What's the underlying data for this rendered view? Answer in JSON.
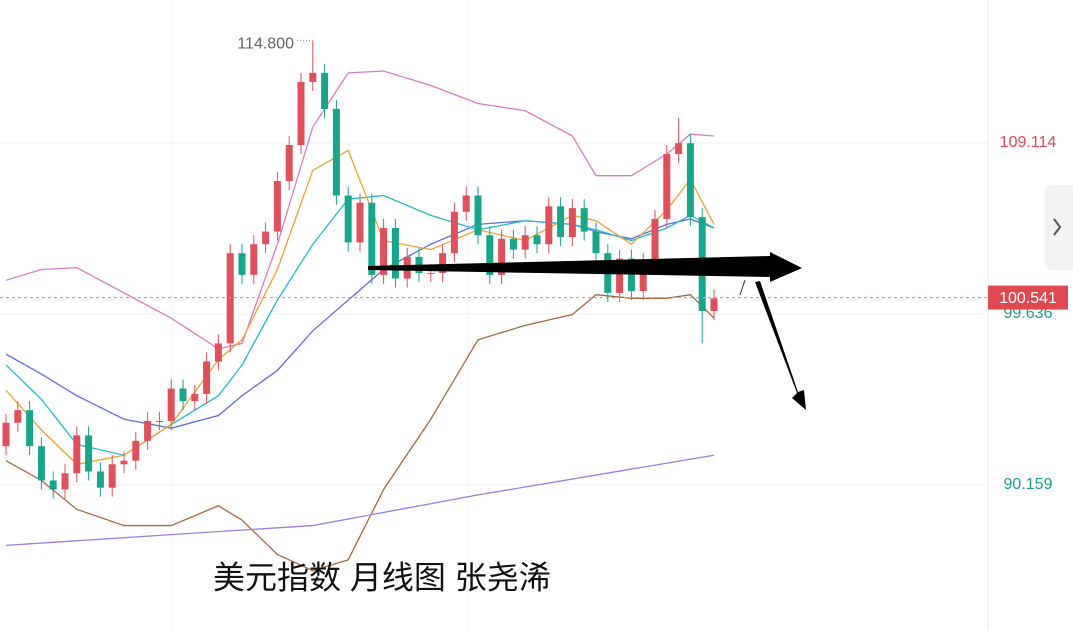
{
  "chart_data": {
    "type": "candlestick",
    "title": "美元指数 月线图 张尧浠",
    "ylim": [
      82.11,
      117.04
    ],
    "yticks": [
      109.114,
      99.636,
      90.159
    ],
    "ytick_colors": [
      "#d9485a",
      "#17a08a",
      "#17a08a"
    ],
    "last_price": 100.541,
    "last_price_color": "#e04850",
    "max_annotation": {
      "value": 114.8,
      "label": "114.800"
    },
    "up_color": "#e0505a",
    "down_color": "#17a58c",
    "grid": true,
    "open": [
      92.3,
      93.6,
      94.3,
      92.3,
      90.4,
      89.9,
      90.8,
      92.9,
      90.9,
      90.0,
      91.3,
      91.5,
      92.6,
      93.7,
      93.7,
      95.5,
      94.8,
      95.2,
      97.0,
      98.0,
      103.0,
      101.8,
      103.5,
      104.2,
      107.0,
      109.0,
      112.5,
      113.0,
      111.0,
      106.2,
      103.6,
      105.8,
      101.8,
      104.4,
      101.6,
      102.8,
      101.9,
      101.9,
      103.0,
      105.3,
      106.2,
      104.0,
      101.8,
      103.8,
      103.2,
      104.0,
      103.5,
      105.6,
      103.9,
      105.5,
      104.2,
      103.0,
      100.8,
      102.7,
      100.9,
      102.5,
      104.9,
      108.5,
      109.1,
      105.0,
      99.8
    ],
    "high": [
      94.1,
      94.8,
      94.8,
      92.8,
      90.9,
      91.3,
      93.4,
      93.4,
      91.4,
      91.8,
      92.0,
      93.1,
      94.2,
      94.2,
      96.0,
      96.0,
      95.7,
      97.5,
      98.5,
      103.5,
      103.5,
      104.0,
      104.7,
      107.5,
      109.5,
      113.0,
      114.8,
      113.5,
      111.5,
      106.7,
      106.3,
      106.3,
      104.9,
      104.9,
      103.3,
      103.3,
      102.4,
      103.5,
      105.8,
      106.7,
      106.7,
      104.5,
      104.3,
      104.3,
      104.5,
      104.5,
      106.1,
      106.1,
      106.0,
      106.0,
      104.7,
      103.5,
      103.2,
      103.2,
      103.0,
      105.4,
      109.0,
      110.5,
      109.6,
      105.5,
      101.0
    ],
    "low": [
      91.8,
      93.1,
      91.8,
      89.9,
      89.4,
      89.4,
      90.3,
      90.4,
      89.5,
      89.5,
      90.8,
      91.0,
      92.1,
      93.2,
      93.2,
      94.3,
      94.3,
      94.7,
      96.5,
      97.5,
      101.3,
      101.3,
      103.0,
      103.7,
      106.5,
      108.5,
      112.0,
      110.5,
      105.7,
      103.1,
      103.1,
      101.3,
      101.3,
      101.1,
      101.1,
      101.4,
      101.4,
      101.4,
      102.5,
      104.8,
      103.5,
      101.3,
      101.3,
      102.7,
      102.7,
      103.0,
      103.0,
      103.4,
      103.4,
      103.7,
      102.5,
      100.3,
      100.3,
      100.4,
      100.4,
      102.0,
      104.4,
      108.0,
      104.5,
      98.0,
      99.3
    ],
    "close": [
      93.6,
      94.3,
      92.3,
      90.4,
      89.9,
      90.8,
      92.9,
      90.9,
      90.0,
      91.3,
      91.5,
      92.6,
      93.7,
      93.7,
      95.5,
      94.8,
      95.2,
      97.0,
      98.0,
      103.0,
      101.8,
      103.5,
      104.2,
      107.0,
      109.0,
      112.5,
      113.0,
      111.0,
      106.2,
      103.6,
      105.8,
      101.8,
      104.4,
      101.6,
      102.8,
      101.9,
      101.9,
      103.0,
      105.3,
      106.2,
      104.0,
      101.8,
      103.8,
      103.2,
      104.0,
      103.5,
      105.6,
      103.9,
      105.5,
      104.2,
      103.0,
      100.8,
      102.7,
      100.9,
      102.5,
      104.9,
      108.5,
      109.1,
      105.0,
      99.8,
      100.5
    ],
    "series": [
      {
        "color": "#d97bc5",
        "x": [
          0,
          3,
          6,
          10,
          14,
          18,
          20,
          23,
          26,
          29,
          32,
          36,
          40,
          44,
          48,
          50,
          53,
          56,
          58,
          60
        ],
        "values": [
          101.5,
          102.1,
          102.2,
          100.8,
          99.4,
          97.7,
          98.0,
          103.5,
          110.0,
          113.0,
          113.1,
          112.3,
          111.3,
          110.9,
          109.5,
          107.3,
          107.3,
          108.5,
          109.6,
          109.5
        ]
      },
      {
        "color": "#a5683e",
        "x": [
          0,
          3,
          6,
          10,
          14,
          18,
          20,
          23,
          26,
          29,
          32,
          36,
          40,
          44,
          48,
          50,
          53,
          56,
          58,
          60
        ],
        "values": [
          91.5,
          90.4,
          88.8,
          87.9,
          87.9,
          89.0,
          88.2,
          86.3,
          85.4,
          86.0,
          89.9,
          93.8,
          98.2,
          99.0,
          99.6,
          100.7,
          100.5,
          100.5,
          100.7,
          99.4
        ]
      },
      {
        "color": "#5b6fd6",
        "x": [
          0,
          3,
          6,
          10,
          14,
          18,
          20,
          23,
          26,
          29,
          32,
          36,
          40,
          44,
          48,
          50,
          53,
          56,
          58,
          60
        ],
        "values": [
          97.4,
          96.3,
          95.1,
          93.8,
          93.3,
          94.0,
          95.1,
          96.5,
          98.7,
          100.4,
          102.1,
          103.5,
          104.6,
          104.8,
          104.6,
          104.2,
          103.8,
          104.6,
          104.9,
          104.4
        ]
      },
      {
        "color": "#20bccc",
        "x": [
          0,
          3,
          6,
          10,
          14,
          18,
          20,
          23,
          26,
          29,
          32,
          36,
          40,
          44,
          48,
          50,
          53,
          56,
          58,
          60
        ],
        "values": [
          96.8,
          94.9,
          92.4,
          91.8,
          93.5,
          95.1,
          96.8,
          100.4,
          103.5,
          106.0,
          106.2,
          105.1,
          104.3,
          104.8,
          104.6,
          104.3,
          103.7,
          104.4,
          105.1,
          104.4
        ]
      },
      {
        "color": "#f0a030",
        "x": [
          0,
          3,
          6,
          10,
          14,
          18,
          20,
          23,
          26,
          29,
          32,
          36,
          40,
          44,
          48,
          50,
          53,
          56,
          58,
          60
        ],
        "values": [
          95.4,
          93.2,
          91.3,
          91.8,
          93.5,
          97.1,
          98.2,
          102.1,
          107.6,
          108.7,
          103.7,
          103.2,
          104.3,
          103.7,
          105.1,
          104.8,
          103.5,
          105.4,
          107.1,
          104.6
        ]
      },
      {
        "color": "#9a7ee0",
        "x": [
          0,
          14,
          26,
          40,
          50,
          60
        ],
        "values": [
          86.8,
          87.4,
          87.9,
          89.6,
          90.7,
          91.8
        ]
      }
    ]
  }
}
